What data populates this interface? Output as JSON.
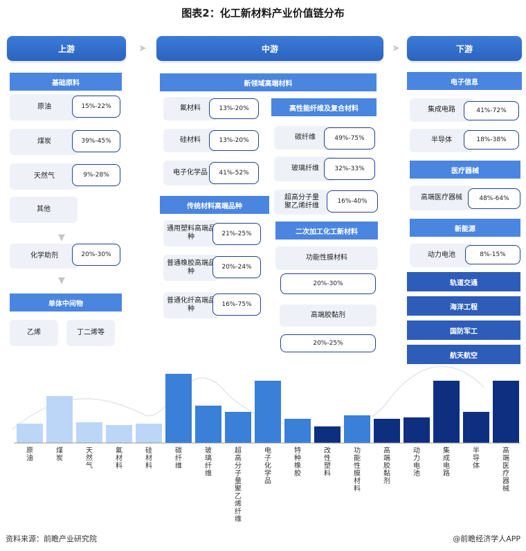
{
  "title": "图表2：化工新材料产业价值链分布",
  "stages": {
    "upstream": "上游",
    "midstream": "中游",
    "downstream": "下游"
  },
  "upstream": {
    "basic_head": "基础原料",
    "items": [
      {
        "label": "原油",
        "pct": "15%-22%"
      },
      {
        "label": "煤炭",
        "pct": "39%-45%"
      },
      {
        "label": "天然气",
        "pct": "9%-28%"
      }
    ],
    "other": "其他",
    "aux": {
      "label": "化学助剂",
      "pct": "20%-30%"
    },
    "monomer_head": "单体中间物",
    "monomers": [
      "乙烯",
      "丁二烯等"
    ]
  },
  "midstream": {
    "new_head": "新领域高端材料",
    "new_items": [
      {
        "label": "氟材料",
        "pct": "13%-20%"
      },
      {
        "label": "硅材料",
        "pct": "13%-20%"
      },
      {
        "label": "电子化学品",
        "pct": "41%-52%"
      }
    ],
    "hp_head": "高性能纤维及复合材料",
    "hp_items": [
      {
        "label": "碳纤维",
        "pct": "49%-75%"
      },
      {
        "label": "玻璃纤维",
        "pct": "32%-33%"
      },
      {
        "label": "超高分子量聚乙烯纤维",
        "pct": "16%-40%"
      }
    ],
    "trad_head": "传统材料高端品种",
    "trad_items": [
      {
        "label": "通用塑料高端品种",
        "pct": "21%-25%"
      },
      {
        "label": "普通橡胶高端品种",
        "pct": "20%-24%"
      },
      {
        "label": "普通化纤高端品种",
        "pct": "16%-75%"
      }
    ],
    "sec_head": "二次加工化工新材料",
    "sec_items": [
      {
        "label": "功能性膜材料",
        "pct": "20%-30%"
      },
      {
        "label": "高端胶黏剂",
        "pct": "20%-25%"
      }
    ]
  },
  "downstream": {
    "elec_head": "电子信息",
    "elec_items": [
      {
        "label": "集成电路",
        "pct": "41%-72%"
      },
      {
        "label": "半导体",
        "pct": "18%-38%"
      }
    ],
    "med_head": "医疗器械",
    "med_items": [
      {
        "label": "高端医疗器械",
        "pct": "48%-64%"
      }
    ],
    "energy_head": "新能源",
    "energy_items": [
      {
        "label": "动力电池",
        "pct": "8%-15%"
      }
    ],
    "others": [
      "轨道交通",
      "海洋工程",
      "国防军工",
      "航天航空"
    ]
  },
  "chart_data": {
    "type": "bar",
    "categories": [
      "原油",
      "煤炭",
      "天然气",
      "氟材料",
      "硅材料",
      "碳纤维",
      "玻璃纤维",
      "超高分子量聚乙烯纤维",
      "电子化学品",
      "特种橡胶",
      "改性塑料",
      "功能性膜材料",
      "高端胶黏剂",
      "动力电池",
      "集成电路",
      "半导体",
      "高端医疗器械"
    ],
    "values": [
      28,
      68,
      30,
      26,
      28,
      100,
      54,
      45,
      90,
      35,
      24,
      40,
      35,
      37,
      90,
      45,
      90
    ],
    "colors": [
      "#bcd6f8",
      "#bcd6f8",
      "#bcd6f8",
      "#bcd6f8",
      "#bcd6f8",
      "#3a7fd8",
      "#3a7fd8",
      "#3a7fd8",
      "#3a7fd8",
      "#3a7fd8",
      "#0e2f80",
      "#3a7fd8",
      "#0e2f80",
      "#0e2f80",
      "#0e2f80",
      "#0e2f80",
      "#0e2f80"
    ],
    "ylim": [
      0,
      100
    ]
  },
  "footer": {
    "source": "资料来源：前瞻产业研究院",
    "brand": "@前瞻经济学人APP"
  }
}
